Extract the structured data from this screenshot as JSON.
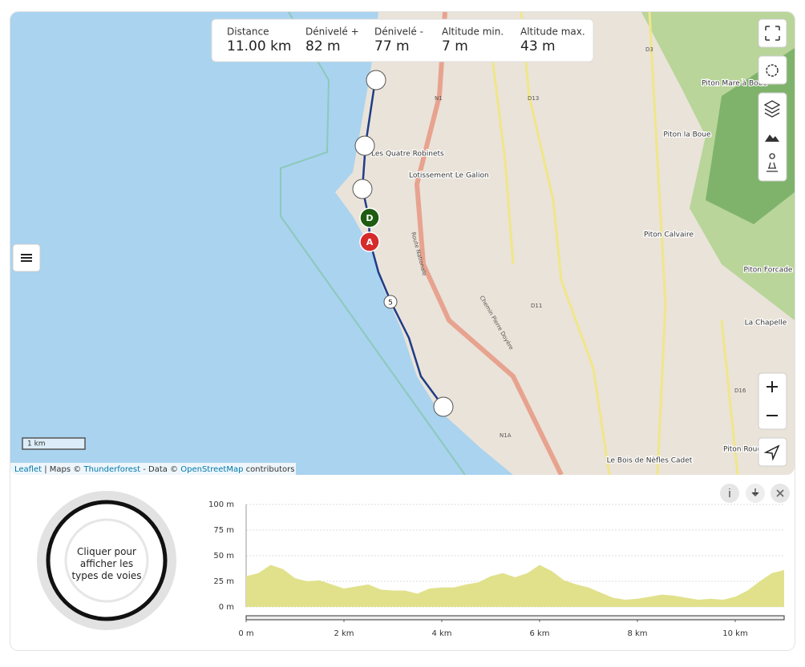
{
  "stats": [
    {
      "label": "Distance",
      "value": "11.00 km"
    },
    {
      "label": "Dénivelé +",
      "value": "82 m"
    },
    {
      "label": "Dénivelé -",
      "value": "77 m"
    },
    {
      "label": "Altitude min.",
      "value": "7 m"
    },
    {
      "label": "Altitude max.",
      "value": "43 m"
    }
  ],
  "map": {
    "places": [
      "Les Quatre Robinets",
      "Lotissement Le Galion",
      "Piton Mare à Boue",
      "Piton la Boue",
      "Piton Calvaire",
      "Piton Forcade",
      "La Chapelle",
      "Le Bois de Nèfles Cadet",
      "Piton Roug"
    ],
    "roads": [
      "D3",
      "D13",
      "N1",
      "D11",
      "D16",
      "N1A",
      "Route Nationale",
      "Chemin Pierre Doyère"
    ],
    "markers": {
      "start": "D",
      "end": "A",
      "km": "5"
    },
    "scale": "1 km",
    "attribution": {
      "leaflet": "Leaflet",
      "maps": "| Maps ©",
      "thunderforest": "Thunderforest",
      "data": "- Data ©",
      "osm": "OpenStreetMap",
      "contributors": "contributors"
    }
  },
  "ring": {
    "text": [
      "Cliquer pour",
      "afficher les",
      "types de voies"
    ]
  },
  "chart_data": {
    "type": "area",
    "color": "#e1e18c",
    "x": [
      0,
      0.25,
      0.5,
      0.75,
      1,
      1.25,
      1.5,
      1.75,
      2,
      2.25,
      2.5,
      2.75,
      3,
      3.25,
      3.5,
      3.75,
      4,
      4.25,
      4.5,
      4.75,
      5,
      5.25,
      5.5,
      5.75,
      6,
      6.25,
      6.5,
      6.75,
      7,
      7.25,
      7.5,
      7.75,
      8,
      8.25,
      8.5,
      8.75,
      9,
      9.25,
      9.5,
      9.75,
      10,
      10.25,
      10.5,
      10.75,
      11
    ],
    "values": [
      30,
      33,
      41,
      37,
      28,
      25,
      26,
      22,
      18,
      20,
      22,
      17,
      16,
      16,
      13,
      18,
      19,
      19,
      22,
      24,
      30,
      33,
      29,
      33,
      41,
      35,
      26,
      22,
      19,
      14,
      9,
      7,
      8,
      10,
      12,
      11,
      9,
      7,
      8,
      7,
      10,
      16,
      25,
      33,
      36
    ],
    "xlim": [
      0,
      11
    ],
    "xticks": [
      {
        "value": 0,
        "label": "0 m"
      },
      {
        "value": 2,
        "label": "2 km"
      },
      {
        "value": 4,
        "label": "4 km"
      },
      {
        "value": 6,
        "label": "6 km"
      },
      {
        "value": 8,
        "label": "8 km"
      },
      {
        "value": 10,
        "label": "10 km"
      }
    ],
    "ylim": [
      0,
      100
    ],
    "yticks": [
      {
        "value": 0,
        "label": "0 m"
      },
      {
        "value": 25,
        "label": "25 m"
      },
      {
        "value": 50,
        "label": "50 m"
      },
      {
        "value": 75,
        "label": "75 m"
      },
      {
        "value": 100,
        "label": "100 m"
      }
    ],
    "grid": true
  }
}
